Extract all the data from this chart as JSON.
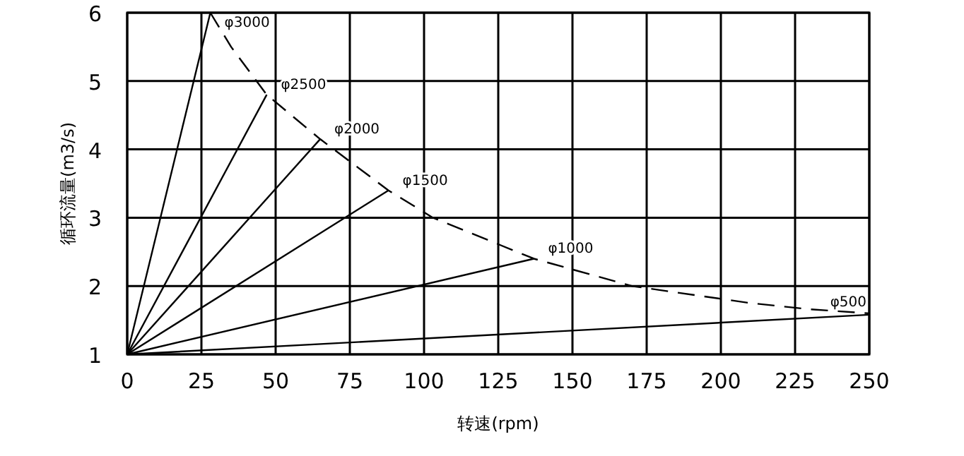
{
  "chart_data": {
    "type": "line",
    "xlabel": "转速(rpm)",
    "ylabel": "循环流量(m3/s)",
    "xlim": [
      0,
      250
    ],
    "ylim": [
      1,
      6
    ],
    "xticks": [
      0,
      25,
      50,
      75,
      100,
      125,
      150,
      175,
      200,
      225,
      250
    ],
    "yticks": [
      1,
      2,
      3,
      4,
      5,
      6
    ],
    "grid": true,
    "marker": "none",
    "series": [
      {
        "name": "φ3000",
        "color": "#000000",
        "x": [
          0,
          28
        ],
        "values": [
          1,
          6.0
        ]
      },
      {
        "name": "φ2500",
        "color": "#000000",
        "x": [
          0,
          47
        ],
        "values": [
          1,
          4.8
        ]
      },
      {
        "name": "φ2000",
        "color": "#000000",
        "x": [
          0,
          65
        ],
        "values": [
          1,
          4.15
        ]
      },
      {
        "name": "φ1500",
        "color": "#000000",
        "x": [
          0,
          88
        ],
        "values": [
          1,
          3.4
        ]
      },
      {
        "name": "φ1000",
        "color": "#000000",
        "x": [
          0,
          137
        ],
        "values": [
          1,
          2.4
        ]
      },
      {
        "name": "φ500",
        "color": "#000000",
        "x": [
          0,
          250
        ],
        "values": [
          1,
          1.58
        ]
      },
      {
        "color": "#000000",
        "line_style": "dashed",
        "x": [
          28,
          35,
          47,
          65,
          88,
          103,
          137,
          170,
          210,
          230,
          250
        ],
        "values": [
          6.0,
          5.5,
          4.8,
          4.15,
          3.4,
          3.0,
          2.4,
          2.0,
          1.75,
          1.66,
          1.6
        ]
      }
    ]
  }
}
